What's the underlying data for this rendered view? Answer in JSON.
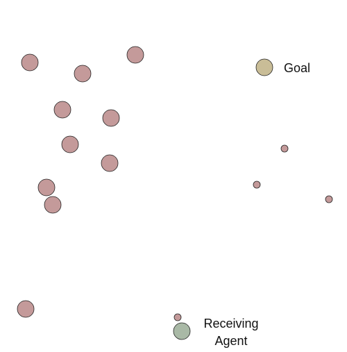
{
  "colors": {
    "obstacle": "#c49a9a",
    "goal": "#c9bd97",
    "agent": "#a9b9a6",
    "stroke": "#222222",
    "background": "#ffffff"
  },
  "labels": {
    "goal": "Goal",
    "agent_line1": "Receiving",
    "agent_line2": "Agent"
  }
}
